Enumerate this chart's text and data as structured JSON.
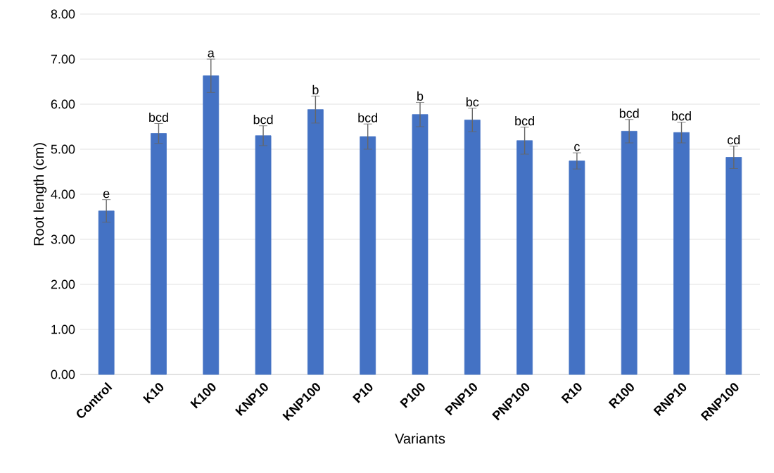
{
  "chart_data": {
    "type": "bar",
    "xlabel": "Variants",
    "ylabel": "Root length (cm)",
    "categories": [
      "Control",
      "K10",
      "K100",
      "KNP10",
      "KNP100",
      "P10",
      "P100",
      "PNP10",
      "PNP100",
      "R10",
      "R100",
      "RNP10",
      "RNP100"
    ],
    "values": [
      3.63,
      5.35,
      6.63,
      5.3,
      5.88,
      5.28,
      5.77,
      5.65,
      5.19,
      4.74,
      5.4,
      5.37,
      4.82
    ],
    "errors": [
      0.25,
      0.22,
      0.37,
      0.22,
      0.3,
      0.28,
      0.27,
      0.26,
      0.3,
      0.18,
      0.26,
      0.23,
      0.25
    ],
    "color": "#4472c4",
    "ylim": [
      0,
      8
    ],
    "yticks": [
      {
        "value": 0,
        "label": "0.00"
      },
      {
        "value": 1,
        "label": "1.00"
      },
      {
        "value": 2,
        "label": "2.00"
      },
      {
        "value": 3,
        "label": "3.00"
      },
      {
        "value": 4,
        "label": "4.00"
      },
      {
        "value": 5,
        "label": "5.00"
      },
      {
        "value": 6,
        "label": "6.00"
      },
      {
        "value": 7,
        "label": "7.00"
      },
      {
        "value": 8,
        "label": "8.00"
      }
    ],
    "grid": "y",
    "annotations": [
      {
        "text": "e",
        "x": "Control",
        "y": 3.88
      },
      {
        "text": "bcd",
        "x": "K10",
        "y": 5.57
      },
      {
        "text": "a",
        "x": "K100",
        "y": 7.0
      },
      {
        "text": "bcd",
        "x": "KNP10",
        "y": 5.52
      },
      {
        "text": "b",
        "x": "KNP100",
        "y": 6.18
      },
      {
        "text": "bcd",
        "x": "P10",
        "y": 5.56
      },
      {
        "text": "b",
        "x": "P100",
        "y": 6.04
      },
      {
        "text": "bc",
        "x": "PNP10",
        "y": 5.91
      },
      {
        "text": "bcd",
        "x": "PNP100",
        "y": 5.49
      },
      {
        "text": "c",
        "x": "R10",
        "y": 4.92
      },
      {
        "text": "bcd",
        "x": "R100",
        "y": 5.66
      },
      {
        "text": "bcd",
        "x": "RNP10",
        "y": 5.6
      },
      {
        "text": "cd",
        "x": "RNP100",
        "y": 5.07
      }
    ]
  }
}
